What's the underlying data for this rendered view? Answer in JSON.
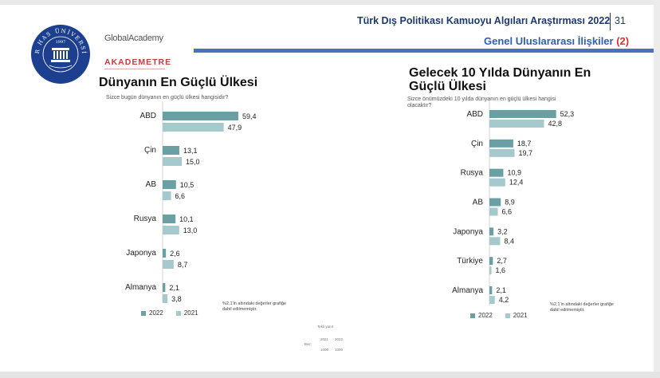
{
  "header": {
    "title": "Türk Dış Politikası Kamuoyu Algıları Araştırması 2022",
    "page_number": "31",
    "section_title": "Genel Uluslararası İlişkiler",
    "section_number": "(2)"
  },
  "logos": {
    "university_ring": "KADIR HAS ÜNİVERSİTESİ",
    "university_year": "1997",
    "global_academy": "GlobalAcademy",
    "akademetre": "AKADEMETRE"
  },
  "colors": {
    "series_2022": "#6a9fa3",
    "series_2021": "#a5c9cc",
    "header_blue": "#1f3a6e",
    "rule_blue": "#4c6fbf"
  },
  "chart_data": [
    {
      "type": "bar",
      "orientation": "horizontal",
      "title": "Dünyanın En Güçlü Ülkesi",
      "subtitle": "Sizce bugün dünyanın en güçlü ülkesi hangisidir?",
      "categories": [
        "ABD",
        "Çin",
        "AB",
        "Rusya",
        "Japonya",
        "Almanya"
      ],
      "series": [
        {
          "name": "2022",
          "values": [
            59.4,
            13.1,
            10.5,
            10.1,
            2.6,
            2.1
          ]
        },
        {
          "name": "2021",
          "values": [
            47.9,
            15.0,
            6.6,
            13.0,
            8.7,
            3.8
          ]
        }
      ],
      "note": "%2,1'in altındaki değerler grafiğe dahil edilmemiştir.",
      "legend_position": "bottom-left"
    },
    {
      "type": "bar",
      "orientation": "horizontal",
      "title": "Gelecek 10 Yılda Dünyanın En Güçlü Ülkesi",
      "subtitle": "Sizce önümüzdeki 10 yılda dünyanın en güçlü ülkesi hangisi olacaktır?",
      "categories": [
        "ABD",
        "Çin",
        "Rusya",
        "AB",
        "Japonya",
        "Türkiye",
        "Almanya"
      ],
      "series": [
        {
          "name": "2022",
          "values": [
            52.3,
            18.7,
            10.9,
            8.9,
            3.2,
            2.7,
            2.1
          ]
        },
        {
          "name": "2021",
          "values": [
            42.8,
            19.7,
            12.4,
            6.6,
            8.4,
            1.6,
            4.2
          ]
        }
      ],
      "note": "%2,1'in altındaki değerler grafiğe dahil edilmemiştir.",
      "legend_position": "bottom-left"
    }
  ],
  "sample_table": {
    "caption": "Tekli yanıt",
    "years": [
      "2021",
      "2022"
    ],
    "row_label": "Baz:",
    "row_values": [
      "1000",
      "1000"
    ]
  }
}
